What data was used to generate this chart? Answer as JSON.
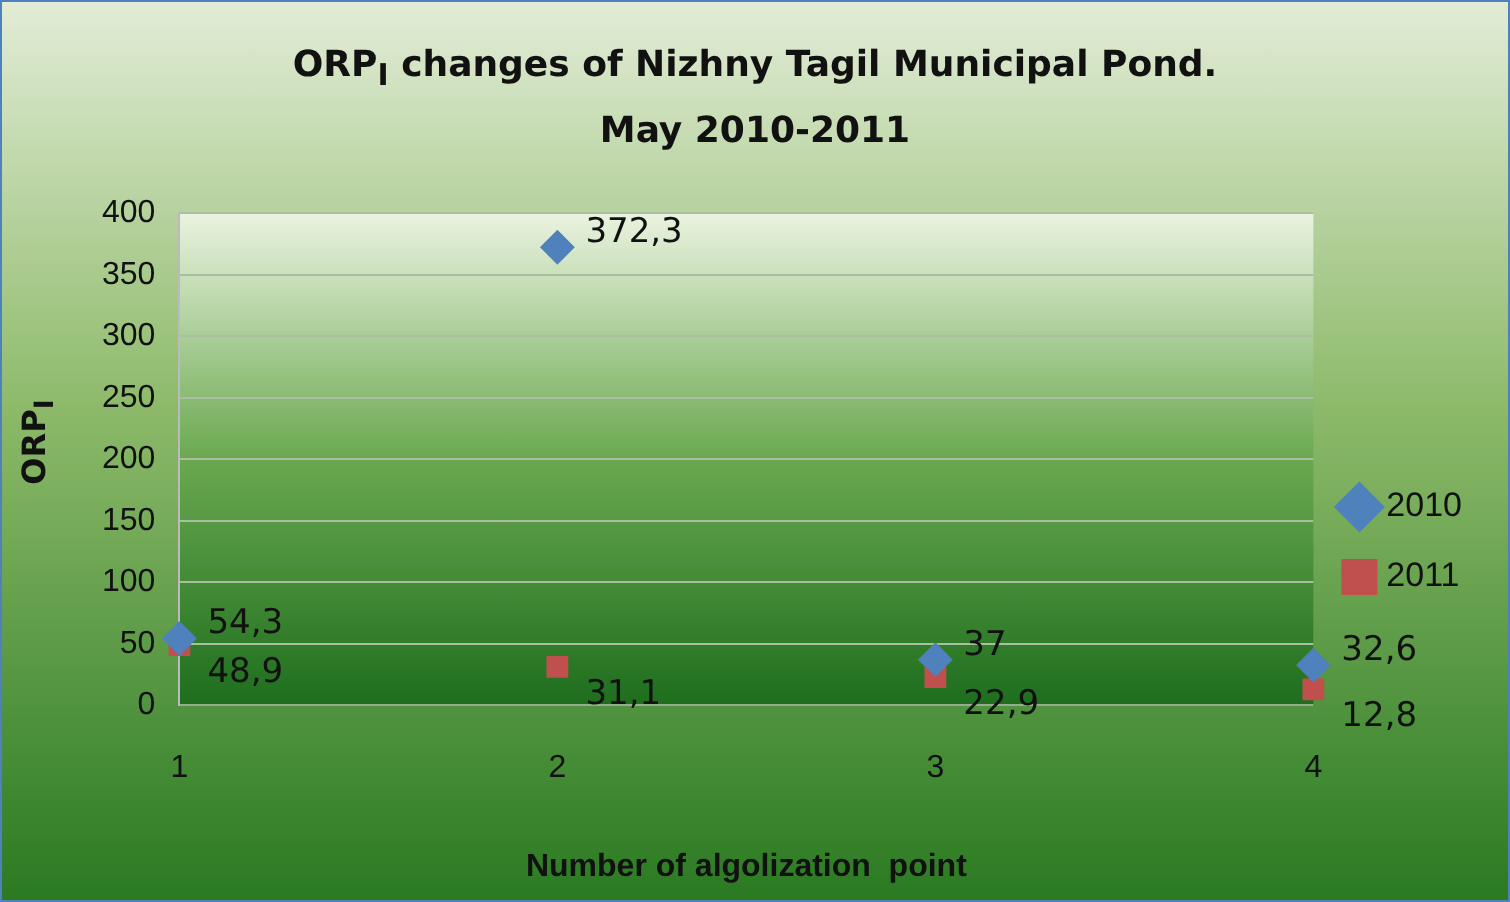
{
  "chart_data": {
    "type": "scatter",
    "title": "ORP$_{I}$ changes of Nizhny Tagil Municipal Pond.\nMay 2010-2011",
    "xlabel": "Number of algolization  point",
    "ylabel": "ORP$_{I}$",
    "x": [
      1,
      2,
      3,
      4
    ],
    "xlim": [
      1,
      4
    ],
    "xticks": [
      1,
      2,
      3,
      4
    ],
    "ylim": [
      0,
      400
    ],
    "yticks": [
      0,
      50,
      100,
      150,
      200,
      250,
      300,
      350,
      400
    ],
    "series": [
      {
        "name": "2010",
        "color": "#4f81bd",
        "marker": "diamond",
        "values": [
          54.3,
          372.3,
          37,
          32.6
        ],
        "value_labels": [
          "54,3",
          "372,3",
          "37",
          "32,6"
        ]
      },
      {
        "name": "2011",
        "color": "#c0504d",
        "marker": "square",
        "values": [
          48.9,
          31.1,
          22.9,
          12.8
        ],
        "value_labels": [
          "48,9",
          "31,1",
          "22,9",
          "12,8"
        ]
      }
    ],
    "grid": "y",
    "legend": "right"
  }
}
